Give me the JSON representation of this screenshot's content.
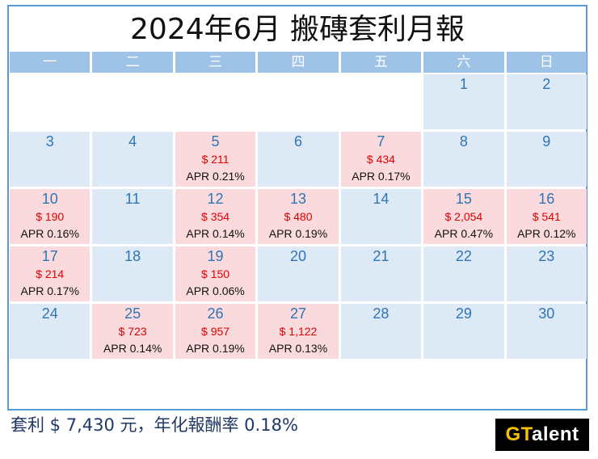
{
  "title": "2024年6月 搬磚套利月報",
  "weekdays": [
    "一",
    "二",
    "三",
    "四",
    "五",
    "六",
    "日"
  ],
  "colors": {
    "header": "#9fc3e6",
    "no_trade_cell": "#dde9f5",
    "trade_cell": "#fadadd",
    "amount": "#e00000",
    "day_number": "#2e75b6"
  },
  "weeks": [
    [
      {
        "day": "",
        "amount": "",
        "apr": "",
        "type": "empty"
      },
      {
        "day": "",
        "amount": "",
        "apr": "",
        "type": "empty"
      },
      {
        "day": "",
        "amount": "",
        "apr": "",
        "type": "empty"
      },
      {
        "day": "",
        "amount": "",
        "apr": "",
        "type": "empty"
      },
      {
        "day": "",
        "amount": "",
        "apr": "",
        "type": "empty"
      },
      {
        "day": "1",
        "amount": "",
        "apr": "",
        "type": "blue"
      },
      {
        "day": "2",
        "amount": "",
        "apr": "",
        "type": "blue"
      }
    ],
    [
      {
        "day": "3",
        "amount": "",
        "apr": "",
        "type": "blue"
      },
      {
        "day": "4",
        "amount": "",
        "apr": "",
        "type": "blue"
      },
      {
        "day": "5",
        "amount": "$ 211",
        "apr": "APR 0.21%",
        "type": "pink"
      },
      {
        "day": "6",
        "amount": "",
        "apr": "",
        "type": "blue"
      },
      {
        "day": "7",
        "amount": "$ 434",
        "apr": "APR 0.17%",
        "type": "pink"
      },
      {
        "day": "8",
        "amount": "",
        "apr": "",
        "type": "blue"
      },
      {
        "day": "9",
        "amount": "",
        "apr": "",
        "type": "blue"
      }
    ],
    [
      {
        "day": "10",
        "amount": "$ 190",
        "apr": "APR 0.16%",
        "type": "pink"
      },
      {
        "day": "11",
        "amount": "",
        "apr": "",
        "type": "blue"
      },
      {
        "day": "12",
        "amount": "$ 354",
        "apr": "APR 0.14%",
        "type": "pink"
      },
      {
        "day": "13",
        "amount": "$ 480",
        "apr": "APR 0.19%",
        "type": "pink"
      },
      {
        "day": "14",
        "amount": "",
        "apr": "",
        "type": "blue"
      },
      {
        "day": "15",
        "amount": "$ 2,054",
        "apr": "APR 0.47%",
        "type": "pink"
      },
      {
        "day": "16",
        "amount": "$ 541",
        "apr": "APR 0.12%",
        "type": "pink"
      }
    ],
    [
      {
        "day": "17",
        "amount": "$ 214",
        "apr": "APR 0.17%",
        "type": "pink"
      },
      {
        "day": "18",
        "amount": "",
        "apr": "",
        "type": "blue"
      },
      {
        "day": "19",
        "amount": "$ 150",
        "apr": "APR 0.06%",
        "type": "pink"
      },
      {
        "day": "20",
        "amount": "",
        "apr": "",
        "type": "blue"
      },
      {
        "day": "21",
        "amount": "",
        "apr": "",
        "type": "blue"
      },
      {
        "day": "22",
        "amount": "",
        "apr": "",
        "type": "blue"
      },
      {
        "day": "23",
        "amount": "",
        "apr": "",
        "type": "blue"
      }
    ],
    [
      {
        "day": "24",
        "amount": "",
        "apr": "",
        "type": "blue"
      },
      {
        "day": "25",
        "amount": "$ 723",
        "apr": "APR 0.14%",
        "type": "pink"
      },
      {
        "day": "26",
        "amount": "$ 957",
        "apr": "APR 0.19%",
        "type": "pink"
      },
      {
        "day": "27",
        "amount": "$ 1,122",
        "apr": "APR 0.13%",
        "type": "pink"
      },
      {
        "day": "28",
        "amount": "",
        "apr": "",
        "type": "blue"
      },
      {
        "day": "29",
        "amount": "",
        "apr": "",
        "type": "blue"
      },
      {
        "day": "30",
        "amount": "",
        "apr": "",
        "type": "blue"
      }
    ]
  ],
  "footer": {
    "summary": "套利 $ 7,430 元，年化報酬率 0.18%"
  },
  "logo": {
    "part1": "GT",
    "part2": "alent"
  }
}
